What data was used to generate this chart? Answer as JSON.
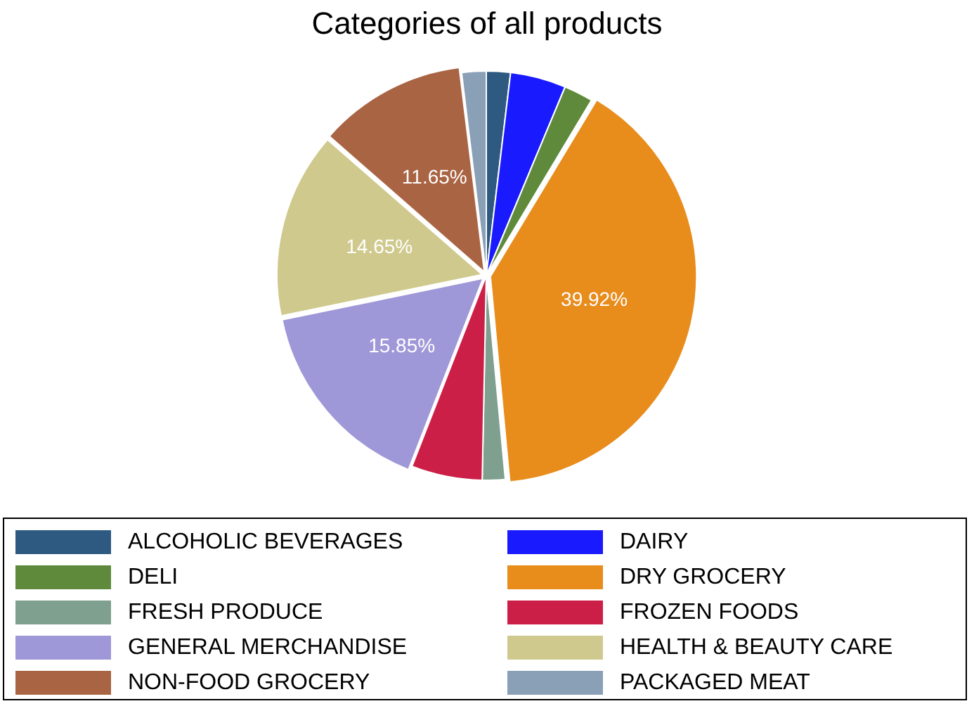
{
  "chart_data": {
    "type": "pie",
    "title": "Categories of all products",
    "categories": [
      "ALCOHOLIC BEVERAGES",
      "DAIRY",
      "DELI",
      "DRY GROCERY",
      "FRESH PRODUCE",
      "FROZEN FOODS",
      "GENERAL MERCHANDISE",
      "HEALTH & BEAUTY CARE",
      "NON-FOOD GROCERY",
      "PACKAGED MEAT"
    ],
    "values": [
      1.9,
      4.4,
      2.3,
      39.92,
      1.8,
      5.6,
      15.85,
      14.65,
      11.65,
      1.93
    ],
    "value_labels": [
      null,
      null,
      null,
      "39.92%",
      null,
      null,
      "15.85%",
      "14.65%",
      "11.65%",
      null
    ],
    "colors": [
      "#2e5a82",
      "#1a1aff",
      "#5f8a3c",
      "#e88c1c",
      "#7f9f8f",
      "#cc1f48",
      "#9f98d8",
      "#cfc98d",
      "#a96443",
      "#8aa0b6"
    ],
    "legend": "bottom"
  }
}
